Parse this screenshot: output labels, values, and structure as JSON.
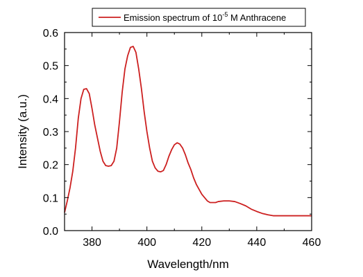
{
  "chart_data": {
    "type": "line",
    "xlabel": "Wavelength/nm",
    "ylabel": "Intensity (a.u.)",
    "xlim": [
      370,
      460
    ],
    "ylim": [
      0.0,
      0.6
    ],
    "x_ticks": [
      "380",
      "400",
      "420",
      "440",
      "460"
    ],
    "y_ticks": [
      "0.0",
      "0.1",
      "0.2",
      "0.3",
      "0.4",
      "0.5",
      "0.6"
    ],
    "legend_position": "top-right",
    "grid": false,
    "series": [
      {
        "name": "Emission spectrum of 10",
        "name_superscript": "-5",
        "name_suffix": " M Anthracene",
        "color": "#cc1f1f",
        "x": [
          370,
          371,
          372,
          373,
          374,
          375,
          376,
          377,
          378,
          379,
          380,
          381,
          382,
          383,
          384,
          385,
          386,
          387,
          388,
          389,
          390,
          391,
          392,
          393,
          394,
          395,
          396,
          397,
          398,
          399,
          400,
          401,
          402,
          403,
          404,
          405,
          406,
          407,
          408,
          409,
          410,
          411,
          412,
          413,
          414,
          415,
          416,
          417,
          418,
          419,
          420,
          421,
          422,
          423,
          424,
          425,
          426,
          428,
          430,
          432,
          434,
          436,
          438,
          440,
          442,
          444,
          446,
          448,
          450,
          452,
          454,
          456,
          458,
          460
        ],
        "values": [
          0.055,
          0.09,
          0.13,
          0.18,
          0.25,
          0.34,
          0.4,
          0.428,
          0.43,
          0.415,
          0.37,
          0.32,
          0.28,
          0.24,
          0.21,
          0.197,
          0.195,
          0.197,
          0.21,
          0.25,
          0.33,
          0.42,
          0.49,
          0.53,
          0.555,
          0.558,
          0.54,
          0.49,
          0.43,
          0.36,
          0.3,
          0.25,
          0.21,
          0.19,
          0.18,
          0.178,
          0.182,
          0.2,
          0.225,
          0.245,
          0.26,
          0.266,
          0.262,
          0.25,
          0.23,
          0.205,
          0.185,
          0.16,
          0.14,
          0.125,
          0.11,
          0.1,
          0.09,
          0.085,
          0.085,
          0.085,
          0.088,
          0.09,
          0.09,
          0.088,
          0.082,
          0.075,
          0.065,
          0.058,
          0.052,
          0.048,
          0.045,
          0.045,
          0.045,
          0.045,
          0.045,
          0.045,
          0.045,
          0.045
        ]
      }
    ]
  }
}
